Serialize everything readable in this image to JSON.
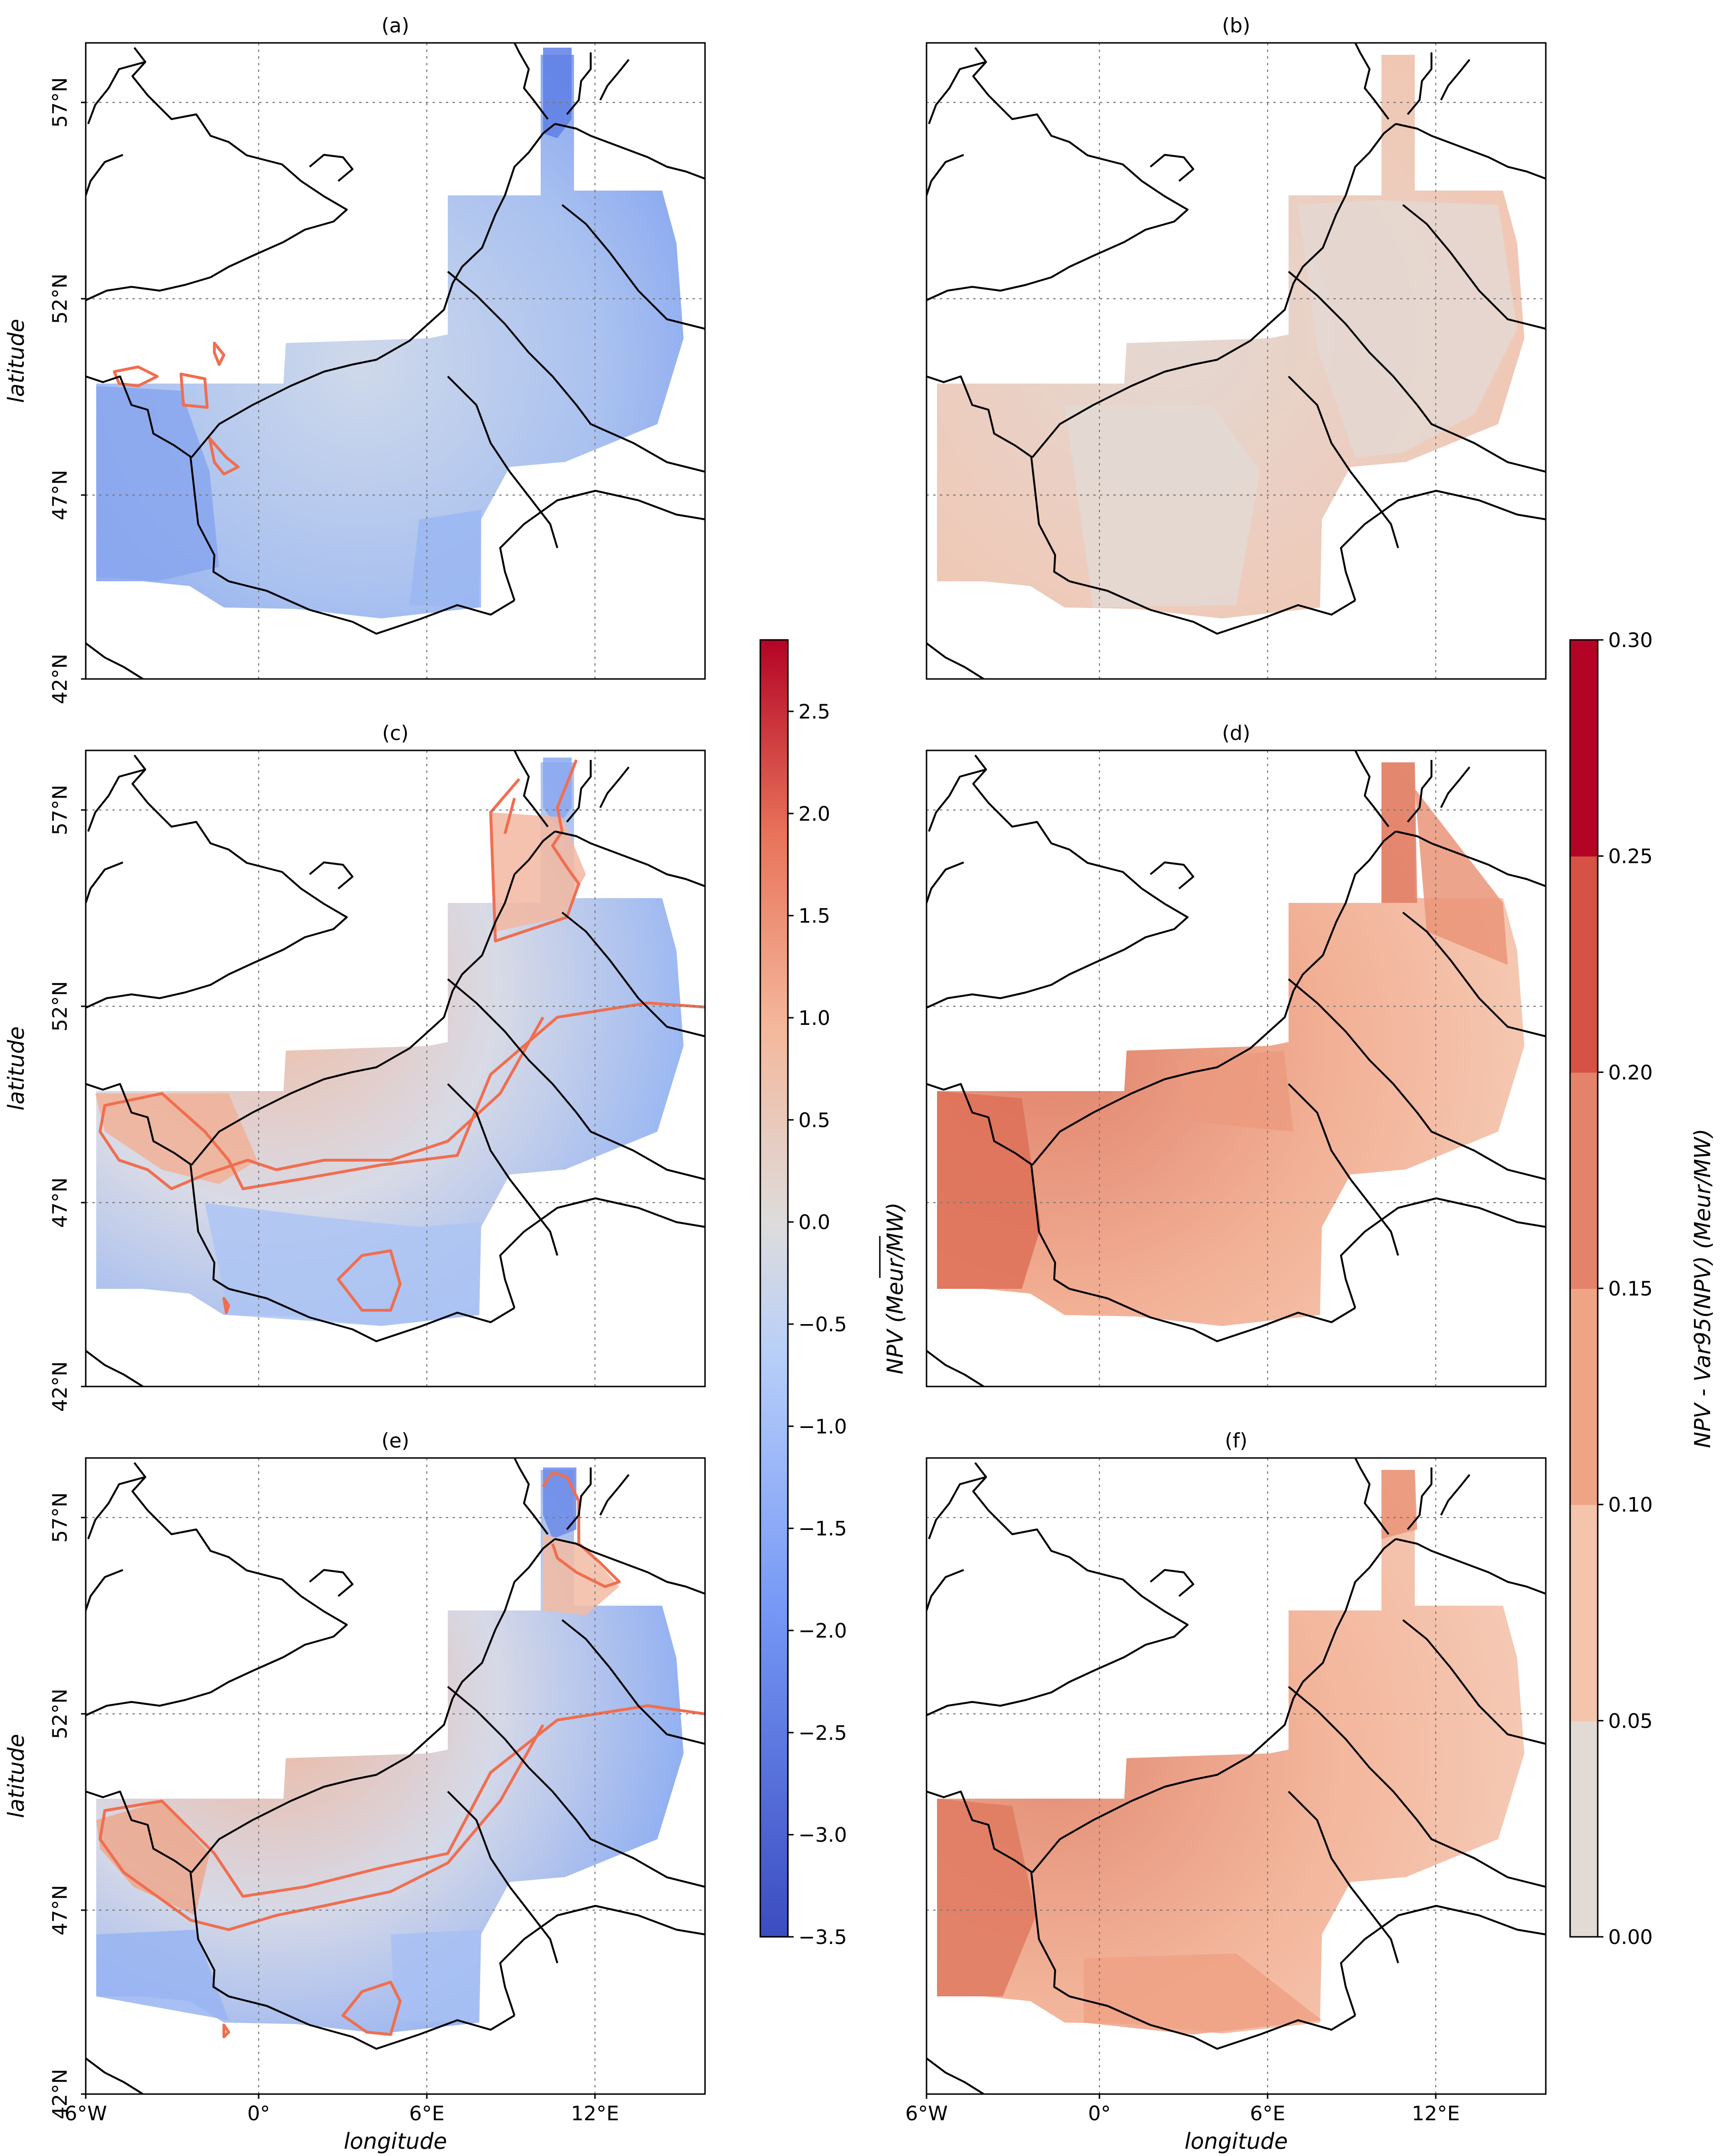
{
  "panels": [
    {
      "label": "(a)",
      "colormap": "diverging",
      "field": "a"
    },
    {
      "label": "(b)",
      "colormap": "sequential",
      "field": "b"
    },
    {
      "label": "(c)",
      "colormap": "diverging",
      "field": "c"
    },
    {
      "label": "(d)",
      "colormap": "sequential",
      "field": "d"
    },
    {
      "label": "(e)",
      "colormap": "diverging",
      "field": "e"
    },
    {
      "label": "(f)",
      "colormap": "sequential",
      "field": "f"
    }
  ],
  "axes": {
    "lat_ticks": [
      "57°N",
      "52°N",
      "47°N",
      "42°N"
    ],
    "lon_ticks": [
      "6°W",
      "0°",
      "6°E",
      "12°E"
    ],
    "ylabel": "latitude",
    "xlabel": "longitude"
  },
  "colorbar_left": {
    "label": "NPV (Meur/MW)",
    "ticks": [
      "2.5",
      "2.0",
      "1.5",
      "1.0",
      "0.5",
      "0.0",
      "−0.5",
      "−1.0",
      "−1.5",
      "−2.0",
      "−2.5",
      "−3.0",
      "−3.5"
    ],
    "range": [
      -3.5,
      2.85
    ],
    "colors": {
      "low": "#3b4cc0",
      "mid": "#dddcdc",
      "high": "#b40426"
    }
  },
  "colorbar_right": {
    "label": "NPV - Var95(NPV) (Meur/MW)",
    "ticks": [
      "0.30",
      "0.25",
      "0.20",
      "0.15",
      "0.10",
      "0.05",
      "0.00"
    ],
    "range": [
      0,
      0.3
    ],
    "colors": [
      "#e2dad5",
      "#f5c4ac",
      "#f0a486",
      "#e5836a",
      "#d65244",
      "#b40426"
    ]
  }
}
